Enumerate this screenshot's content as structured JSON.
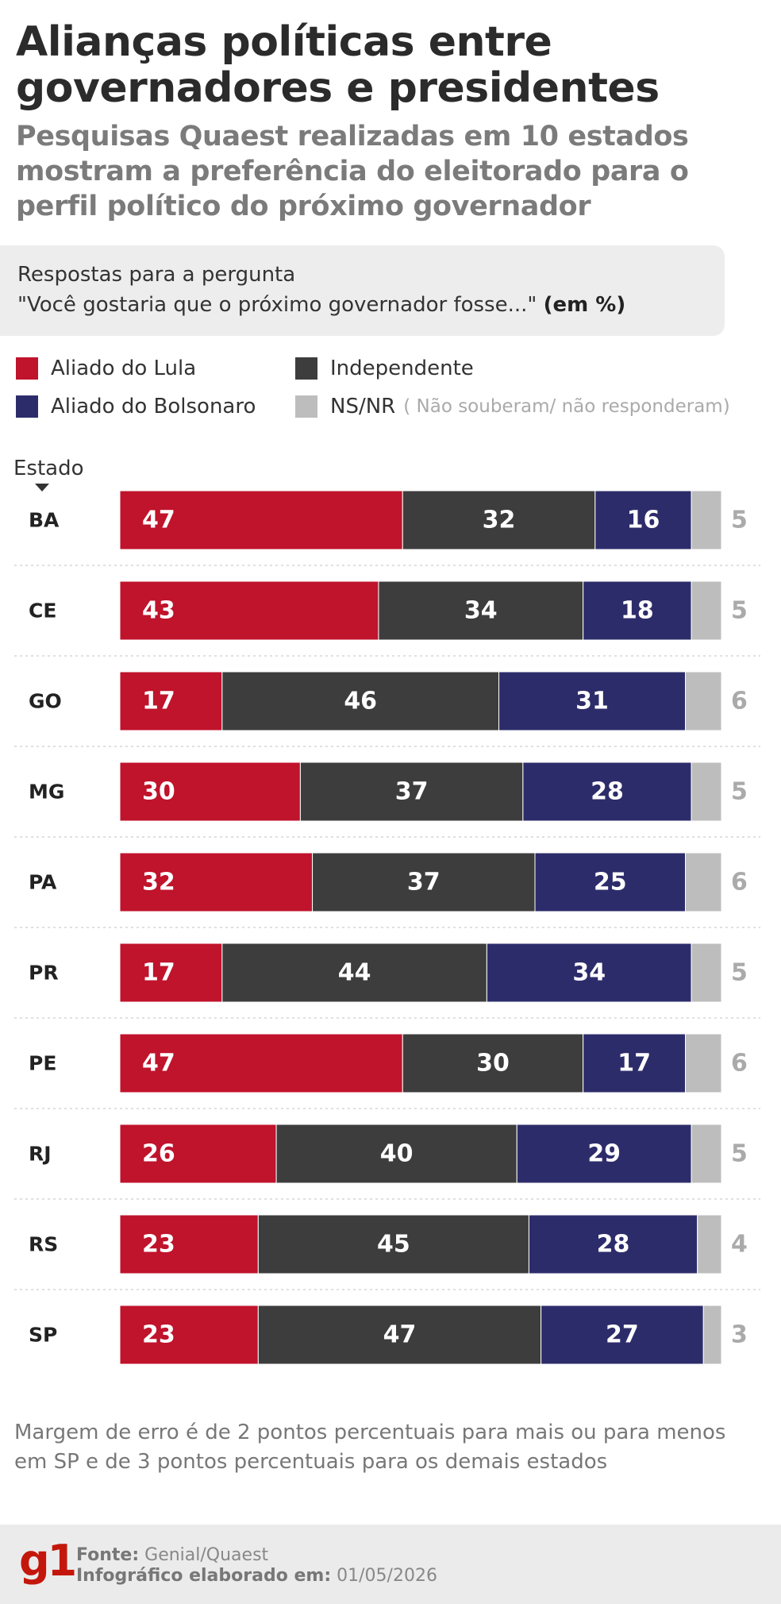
{
  "header": {
    "title": "Alianças políticas entre governadores e presidentes",
    "subtitle": "Pesquisas Quaest realizadas em 10 estados mostram a preferência do eleitorado para o perfil político do próximo governador"
  },
  "question": {
    "line1": "Respostas para a pergunta",
    "line2": "\"Você gostaria que o próximo governador fosse...\"",
    "unit": "(em %)"
  },
  "legend": {
    "lula": "Aliado do Lula",
    "independente": "Independente",
    "bolsonaro": "Aliado do Bolsonaro",
    "nsnr": "NS/NR",
    "nsnr_note": "( Não souberam/ não responderam)"
  },
  "colors": {
    "lula": "#c0132c",
    "independente": "#3d3d3d",
    "bolsonaro": "#2d2c6b",
    "nsnr": "#bdbdbd",
    "nsnr_text": "#aaaaaa"
  },
  "chart_data": {
    "type": "bar",
    "orientation": "horizontal",
    "stacked": true,
    "ylabel": "Estado",
    "categories": [
      "BA",
      "CE",
      "GO",
      "MG",
      "PA",
      "PR",
      "PE",
      "RJ",
      "RS",
      "SP"
    ],
    "series": [
      {
        "name": "Aliado do Lula",
        "values": [
          47,
          43,
          17,
          30,
          32,
          17,
          47,
          26,
          23,
          23
        ]
      },
      {
        "name": "Independente",
        "values": [
          32,
          34,
          46,
          37,
          37,
          44,
          30,
          40,
          45,
          47
        ]
      },
      {
        "name": "Aliado do Bolsonaro",
        "values": [
          16,
          18,
          31,
          28,
          25,
          34,
          17,
          29,
          28,
          27
        ]
      },
      {
        "name": "NS/NR",
        "values": [
          5,
          5,
          6,
          5,
          6,
          5,
          6,
          5,
          4,
          3
        ]
      }
    ],
    "data_labels": true,
    "grid": false
  },
  "notes": {
    "margin": "Margem de erro é de 2 pontos percentuais para mais ou para menos em SP e de 3 pontos percentuais para os demais estados"
  },
  "footer": {
    "logo": "g1",
    "source_label": "Fonte:",
    "source": "Genial/Quaest",
    "made_label": "Infográfico elaborado em:",
    "made_date": "01/05/2026"
  }
}
